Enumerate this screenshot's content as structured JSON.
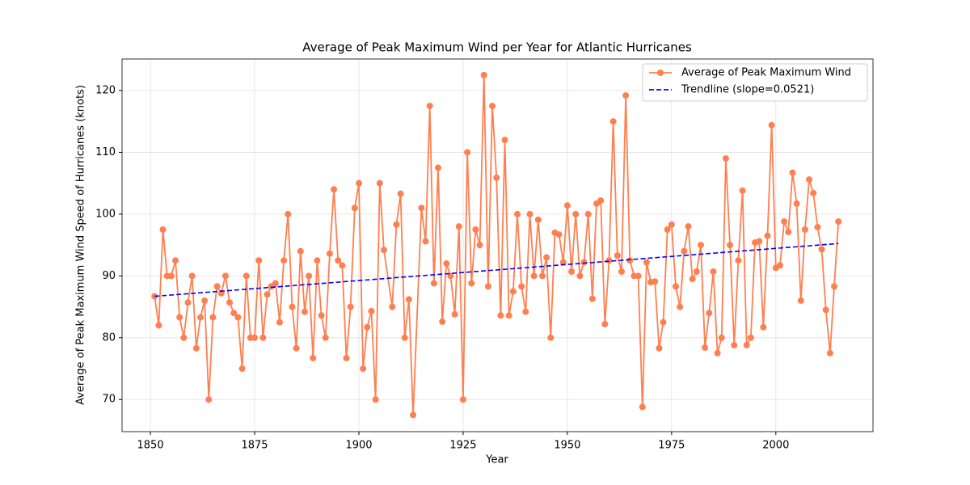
{
  "chart_data": {
    "type": "line",
    "title": "Average of Peak Maximum Wind per Year for Atlantic Hurricanes",
    "x_label": "Year",
    "y_label": "Average of Peak Maximum Wind Speed of Hurricanes (knots)",
    "x": [
      1851,
      1852,
      1853,
      1854,
      1855,
      1856,
      1857,
      1858,
      1859,
      1860,
      1861,
      1862,
      1863,
      1864,
      1865,
      1866,
      1867,
      1868,
      1869,
      1870,
      1871,
      1872,
      1873,
      1874,
      1875,
      1876,
      1877,
      1878,
      1879,
      1880,
      1881,
      1882,
      1883,
      1884,
      1885,
      1886,
      1887,
      1888,
      1889,
      1890,
      1891,
      1892,
      1893,
      1894,
      1895,
      1896,
      1897,
      1898,
      1899,
      1900,
      1901,
      1902,
      1903,
      1904,
      1905,
      1906,
      1908,
      1909,
      1910,
      1911,
      1912,
      1913,
      1915,
      1916,
      1917,
      1918,
      1919,
      1920,
      1921,
      1922,
      1923,
      1924,
      1925,
      1926,
      1927,
      1928,
      1929,
      1930,
      1931,
      1932,
      1933,
      1934,
      1935,
      1936,
      1937,
      1938,
      1939,
      1940,
      1941,
      1942,
      1943,
      1944,
      1945,
      1946,
      1947,
      1948,
      1949,
      1950,
      1951,
      1952,
      1953,
      1954,
      1955,
      1956,
      1957,
      1958,
      1959,
      1960,
      1961,
      1962,
      1963,
      1964,
      1965,
      1966,
      1967,
      1968,
      1969,
      1970,
      1971,
      1972,
      1973,
      1974,
      1975,
      1976,
      1977,
      1978,
      1979,
      1980,
      1981,
      1982,
      1983,
      1984,
      1985,
      1986,
      1987,
      1988,
      1989,
      1990,
      1991,
      1992,
      1993,
      1994,
      1995,
      1996,
      1997,
      1998,
      1999,
      2000,
      2001,
      2002,
      2003,
      2004,
      2005,
      2006,
      2007,
      2008,
      2009,
      2010,
      2011,
      2012,
      2013,
      2014,
      2015
    ],
    "series": [
      {
        "name": "Average of Peak Maximum Wind",
        "color": "#ff7f50",
        "markers": true,
        "values": [
          86.7,
          82,
          97.5,
          90,
          90,
          92.5,
          83.3,
          80,
          85.7,
          90,
          78.3,
          83.3,
          86,
          70,
          83.3,
          88.3,
          87.2,
          90,
          85.7,
          84,
          83.3,
          75,
          90,
          80,
          80,
          92.5,
          80,
          87,
          88.3,
          88.8,
          82.5,
          92.5,
          100,
          85,
          78.3,
          94,
          84.2,
          90,
          76.7,
          92.5,
          83.6,
          80,
          93.6,
          104,
          92.5,
          91.7,
          76.7,
          85,
          101,
          105,
          75,
          81.7,
          84.3,
          70,
          105,
          94.2,
          85,
          98.3,
          103.3,
          80,
          86.2,
          67.5,
          101,
          95.6,
          117.5,
          88.8,
          107.5,
          82.6,
          92,
          90,
          83.8,
          98,
          70,
          110,
          88.8,
          97.5,
          95,
          122.5,
          88.3,
          117.5,
          105.9,
          83.6,
          112,
          83.6,
          87.5,
          100,
          88.3,
          84.2,
          100,
          90,
          99.1,
          90,
          93,
          80,
          97,
          96.7,
          92.2,
          101.4,
          90.7,
          100,
          90,
          92.2,
          100,
          86.3,
          101.7,
          102.2,
          82.2,
          92.5,
          115,
          93.3,
          90.7,
          119.2,
          92.5,
          90,
          90,
          68.8,
          92.2,
          89,
          89.1,
          78.3,
          82.5,
          97.5,
          98.3,
          88.3,
          85,
          94,
          98,
          89.5,
          90.7,
          95,
          78.4,
          84,
          90.7,
          77.5,
          80,
          109,
          95,
          78.8,
          92.5,
          103.8,
          78.8,
          80,
          95.4,
          95.6,
          81.7,
          96.5,
          114.4,
          91.3,
          91.7,
          98.8,
          97.1,
          106.7,
          101.7,
          86,
          97.5,
          105.6,
          103.4,
          97.9,
          94.3,
          84.5,
          77.5,
          88.3,
          98.8
        ]
      },
      {
        "name": "Trendline (slope=0.0521)",
        "color": "#0000ff",
        "dashed": true,
        "x": [
          1851,
          2015
        ],
        "values": [
          86.7,
          95.24
        ]
      }
    ],
    "xlim": [
      1843.2,
      2023.3
    ],
    "ylim": [
      64.8,
      125.1
    ],
    "xticks": [
      1850,
      1875,
      1900,
      1925,
      1950,
      1975,
      2000
    ],
    "yticks": [
      70,
      80,
      90,
      100,
      110,
      120
    ],
    "grid": true,
    "legend": "upper right"
  }
}
